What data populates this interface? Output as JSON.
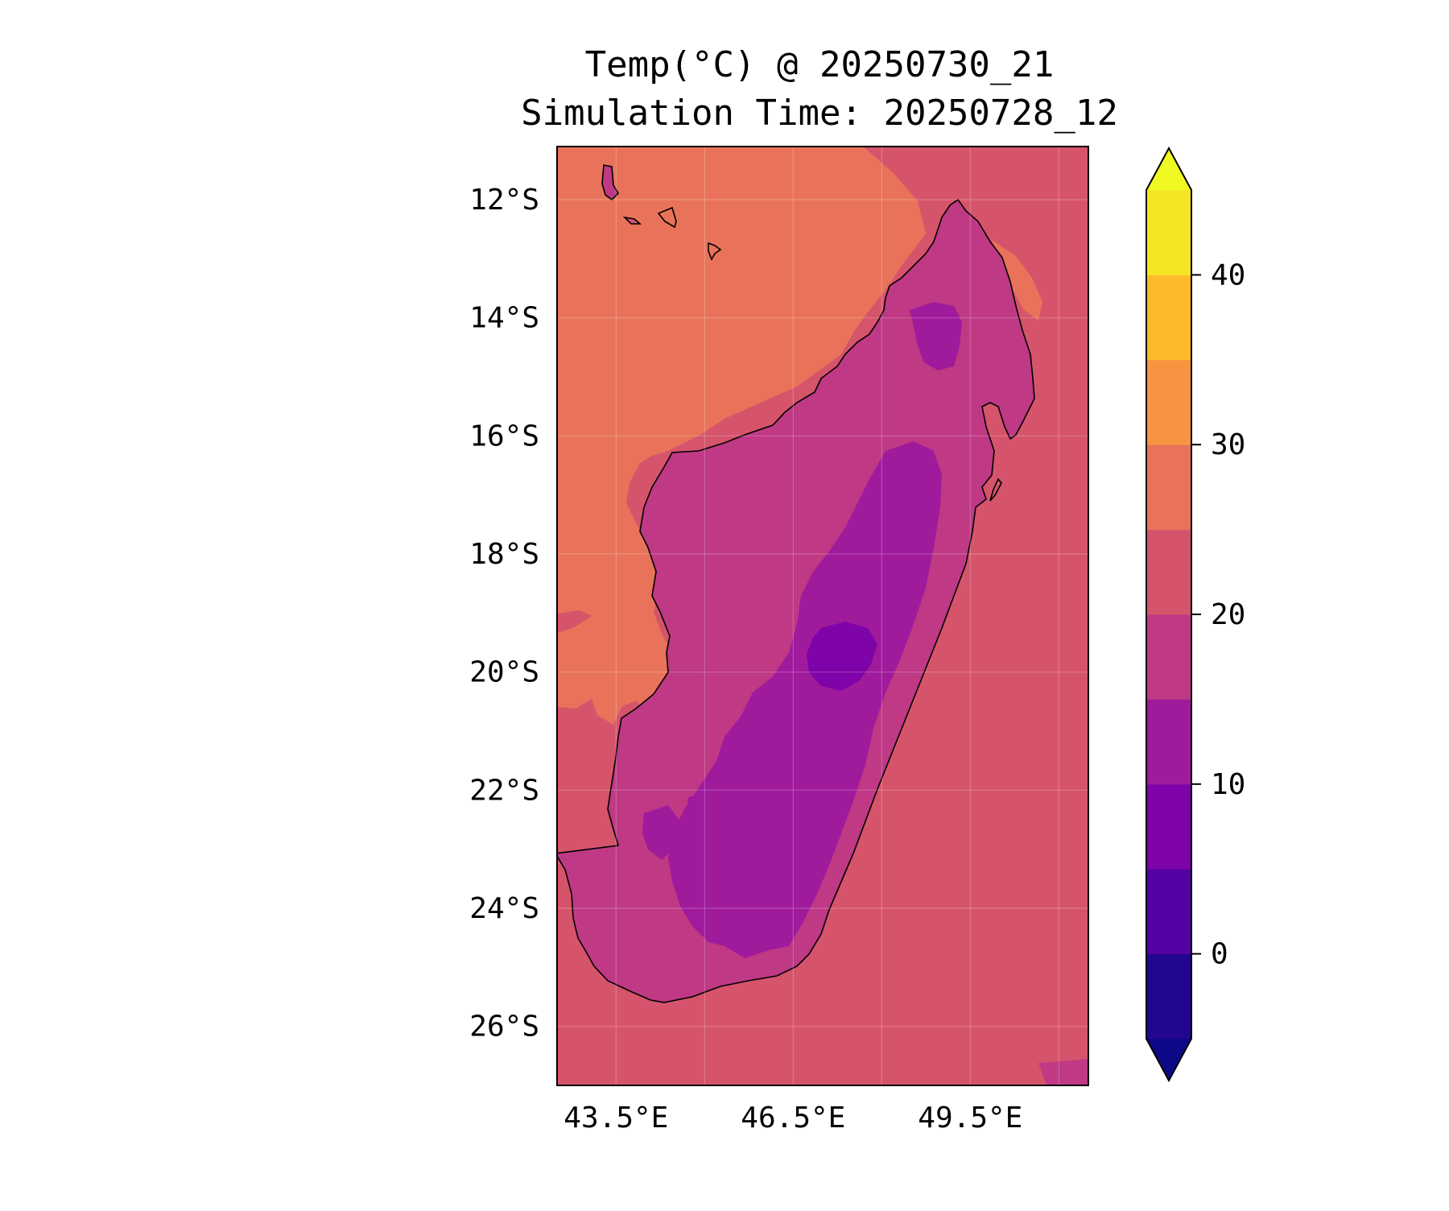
{
  "title": {
    "line1": "Temp(°C) @ 20250730_21",
    "line2": "Simulation Time: 20250728_12"
  },
  "map": {
    "region": "Madagascar",
    "lon_range": [
      42.5,
      51.5
    ],
    "lat_range": [
      -27,
      -11.1
    ],
    "x_ticks": [
      {
        "value": 43.5,
        "label": "43.5°E"
      },
      {
        "value": 46.5,
        "label": "46.5°E"
      },
      {
        "value": 49.5,
        "label": "49.5°E"
      }
    ],
    "y_ticks": [
      {
        "value": -12,
        "label": "12°S"
      },
      {
        "value": -14,
        "label": "14°S"
      },
      {
        "value": -16,
        "label": "16°S"
      },
      {
        "value": -18,
        "label": "18°S"
      },
      {
        "value": -20,
        "label": "20°S"
      },
      {
        "value": -22,
        "label": "22°S"
      },
      {
        "value": -24,
        "label": "24°S"
      },
      {
        "value": -26,
        "label": "26°S"
      }
    ],
    "extra_gridlines_lon": [
      45.0,
      48.0,
      51.0
    ],
    "grid": true,
    "colors": {
      "ocean_20_25": "#d6546b",
      "ocean_25_30": "#e8735a",
      "land_15_20": "#bf3984",
      "land_10_15": "#a01a9c",
      "land_5_10": "#7e03a8"
    }
  },
  "colorbar": {
    "min": -5,
    "max": 45,
    "extend": "both",
    "bounds": [
      -5,
      0,
      5,
      10,
      15,
      20,
      25,
      30,
      35,
      40,
      45
    ],
    "colors": [
      "#220690",
      "#5402a3",
      "#7e03a8",
      "#a01a9c",
      "#bf3984",
      "#d6546b",
      "#e8735a",
      "#f89441",
      "#fdbb2b",
      "#f4e625"
    ],
    "under_color": "#0d0887",
    "over_color": "#f0f921",
    "ticks": [
      {
        "value": 0,
        "label": "0"
      },
      {
        "value": 10,
        "label": "10"
      },
      {
        "value": 20,
        "label": "20"
      },
      {
        "value": 30,
        "label": "30"
      },
      {
        "value": 40,
        "label": "40"
      }
    ]
  }
}
